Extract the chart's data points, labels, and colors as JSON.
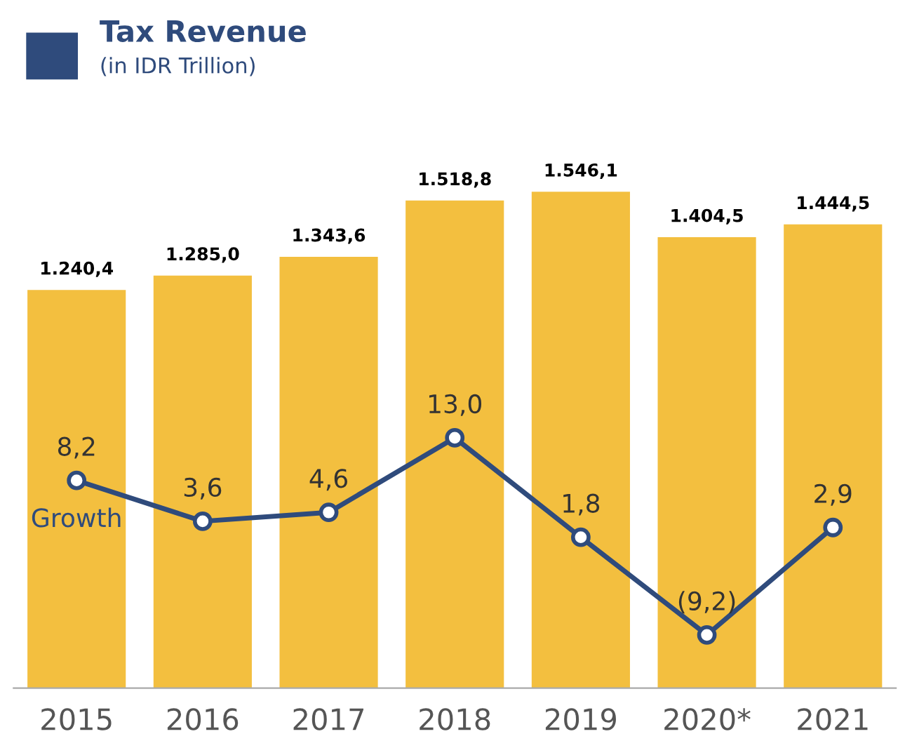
{
  "chart_data": {
    "type": "bar",
    "title": "Tax Revenue",
    "subtitle": "(in IDR Trillion)",
    "categories": [
      "2015",
      "2016",
      "2017",
      "2018",
      "2019",
      "2020*",
      "2021"
    ],
    "series": [
      {
        "color": "#f3bf3f",
        "values": [
          1240.4,
          1285.0,
          1343.6,
          1518.8,
          1546.1,
          1404.5,
          1444.5
        ],
        "value_labels": [
          "1.240,4",
          "1.285,0",
          "1.343,6",
          "1.518,8",
          "1.546,1",
          "1.404,5",
          "1.444,5"
        ]
      },
      {
        "name": "Growth",
        "type": "line",
        "axis": "y2",
        "color": "#2f4b7c",
        "values": [
          8.2,
          3.6,
          4.6,
          13.0,
          1.8,
          -9.2,
          2.9
        ],
        "value_labels": [
          "8,2",
          "3,6",
          "4,6",
          "13,0",
          "1,8",
          "(9,2)",
          "2,9"
        ]
      }
    ],
    "tick_labels": "x",
    "grid": false,
    "legend": false,
    "marker": "circle",
    "line_style": "solid"
  }
}
